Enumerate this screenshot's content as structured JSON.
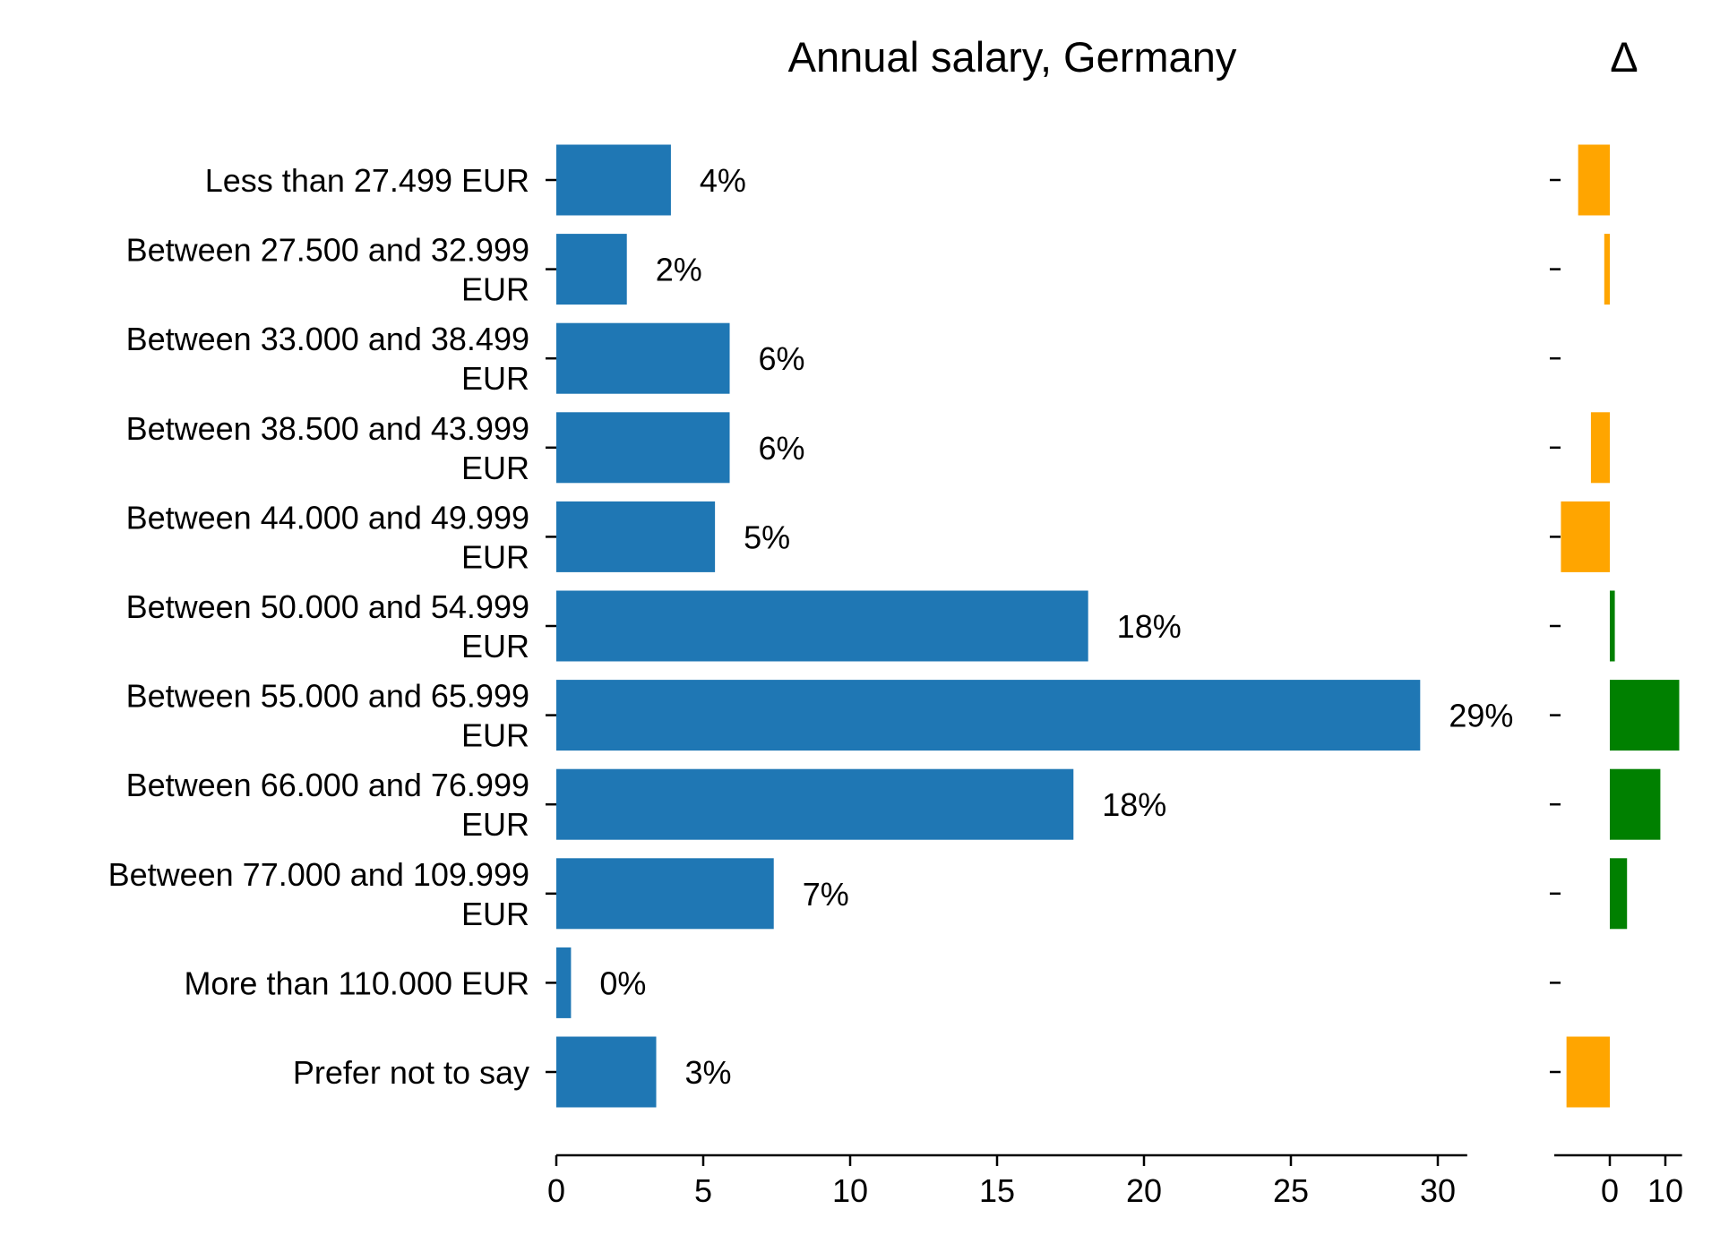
{
  "chart_data": [
    {
      "type": "bar",
      "orientation": "horizontal",
      "title": "Annual salary, Germany",
      "xlabel": "",
      "ylabel": "",
      "xlim": [
        0,
        31
      ],
      "xticks": [
        0,
        5,
        10,
        15,
        20,
        25,
        30
      ],
      "grid": false,
      "color": "#1f77b4",
      "categories": [
        [
          "Less than 27.499 EUR"
        ],
        [
          "Between 27.500 and 32.999",
          "EUR"
        ],
        [
          "Between 33.000 and 38.499",
          "EUR"
        ],
        [
          "Between 38.500 and 43.999",
          "EUR"
        ],
        [
          "Between 44.000 and 49.999",
          "EUR"
        ],
        [
          "Between 50.000 and 54.999",
          "EUR"
        ],
        [
          "Between 55.000 and 65.999",
          "EUR"
        ],
        [
          "Between 66.000 and 76.999",
          "EUR"
        ],
        [
          "Between 77.000 and 109.999",
          "EUR"
        ],
        [
          "More than 110.000 EUR"
        ],
        [
          "Prefer not to say"
        ]
      ],
      "values": [
        3.9,
        2.4,
        5.9,
        5.9,
        5.4,
        18.1,
        29.4,
        17.6,
        7.4,
        0.5,
        3.4
      ],
      "value_labels": [
        "4%",
        "2%",
        "6%",
        "6%",
        "5%",
        "18%",
        "29%",
        "18%",
        "7%",
        "0%",
        "3%"
      ]
    },
    {
      "type": "bar",
      "orientation": "horizontal",
      "title": "Δ",
      "xlabel": "",
      "ylabel": "",
      "xlim": [
        -10,
        13
      ],
      "xticks": [
        0,
        10
      ],
      "grid": false,
      "positive_color": "#008000",
      "negative_color": "#ffa500",
      "values": [
        -5.7,
        -1.0,
        0.0,
        -3.4,
        -8.8,
        0.9,
        12.5,
        9.1,
        3.1,
        0.0,
        -7.8
      ]
    }
  ]
}
